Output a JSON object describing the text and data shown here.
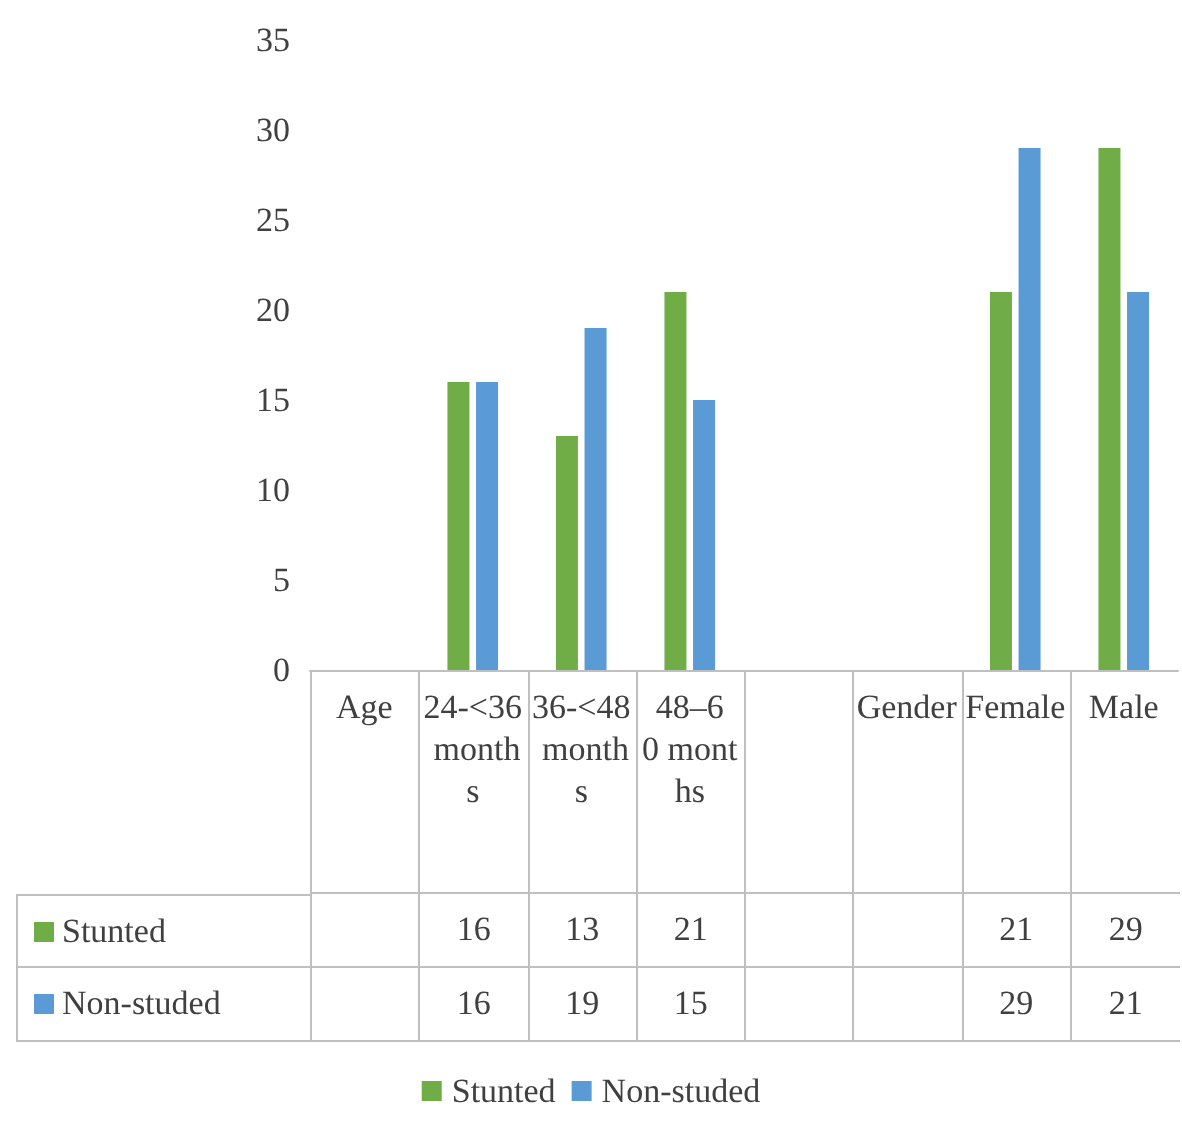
{
  "chart_data": {
    "type": "bar",
    "categories": [
      "Age",
      "24-<36 months",
      "36-<48 months",
      "48–60 months",
      null,
      "Gender",
      "Female",
      "Male"
    ],
    "series": [
      {
        "name": "Stunted",
        "color": "#70ad47",
        "values": [
          null,
          16,
          13,
          21,
          null,
          null,
          21,
          29
        ]
      },
      {
        "name": "Non-studed",
        "color": "#5b9bd5",
        "values": [
          null,
          16,
          19,
          15,
          null,
          null,
          29,
          21
        ]
      }
    ],
    "ylim": [
      0,
      35
    ],
    "yticks": [
      0,
      5,
      10,
      15,
      20,
      25,
      30,
      35
    ],
    "data_labels": true,
    "legend": "bottom"
  }
}
